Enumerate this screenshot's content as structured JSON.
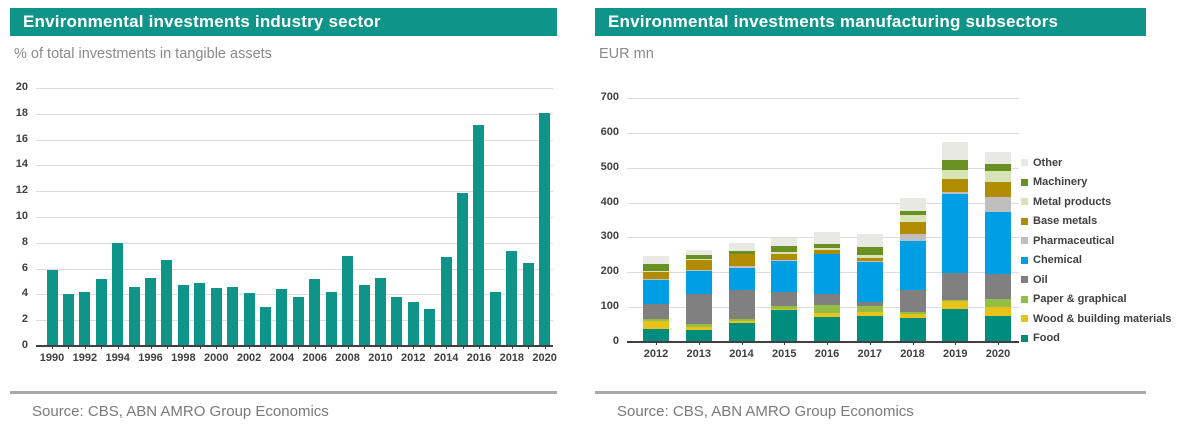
{
  "colors": {
    "header_bg": "#0E9488",
    "header_text": "#ffffff",
    "subtitle_text": "#8A8A8A",
    "axis_text": "#404040",
    "gridline": "#DCDCDC",
    "axis_line": "#404040",
    "divider": "#A8A8A8",
    "source_text": "#7A7A7A",
    "bar_teal": "#0E9488"
  },
  "left_panel": {
    "title": "Environmental investments industry sector",
    "subtitle": "% of total investments in tangible assets",
    "source": "Source: CBS, ABN AMRO Group Economics",
    "chart_data": {
      "type": "bar",
      "title": "Environmental investments industry sector",
      "ylabel": "% of total investments in tangible assets",
      "ylim": [
        0,
        20
      ],
      "ytick_step": 2,
      "grid": true,
      "bar_color": "#0E9488",
      "xtick_label_every": 2,
      "categories": [
        "1990",
        "1991",
        "1992",
        "1993",
        "1994",
        "1995",
        "1996",
        "1997",
        "1998",
        "1999",
        "2000",
        "2001",
        "2002",
        "2003",
        "2004",
        "2005",
        "2006",
        "2007",
        "2008",
        "2009",
        "2010",
        "2011",
        "2012",
        "2013",
        "2014",
        "2015",
        "2016",
        "2017",
        "2018",
        "2019",
        "2020"
      ],
      "values": [
        5.9,
        4.0,
        4.2,
        5.2,
        8.0,
        4.6,
        5.3,
        6.7,
        4.7,
        4.9,
        4.5,
        4.6,
        4.1,
        3.0,
        4.4,
        3.8,
        5.2,
        4.2,
        7.0,
        4.7,
        5.3,
        3.8,
        3.4,
        2.9,
        6.9,
        11.9,
        17.1,
        4.2,
        7.4,
        6.4,
        18.1
      ]
    }
  },
  "right_panel": {
    "title": "Environmental investments manufacturing subsectors",
    "subtitle": "EUR mn",
    "source": "Source: CBS, ABN AMRO Group Economics",
    "chart_data": {
      "type": "stacked-bar",
      "title": "Environmental investments manufacturing subsectors",
      "ylabel": "EUR mn",
      "ylim": [
        0,
        700
      ],
      "ytick_step": 100,
      "grid": true,
      "legend_position": "right",
      "categories": [
        "2012",
        "2013",
        "2014",
        "2015",
        "2016",
        "2017",
        "2018",
        "2019",
        "2020"
      ],
      "series": [
        {
          "name": "Food",
          "color": "#008D7E",
          "values": [
            36,
            35,
            55,
            93,
            72,
            74,
            70,
            95,
            76
          ]
        },
        {
          "name": "Wood & building materials",
          "color": "#E8C219",
          "values": [
            24,
            9,
            5,
            3,
            12,
            13,
            9,
            24,
            24
          ]
        },
        {
          "name": "Paper & graphical",
          "color": "#94BE44",
          "values": [
            7,
            8,
            5,
            7,
            21,
            17,
            7,
            2,
            24
          ]
        },
        {
          "name": "Oil",
          "color": "#808080",
          "values": [
            42,
            86,
            85,
            41,
            33,
            10,
            62,
            76,
            72
          ]
        },
        {
          "name": "Chemical",
          "color": "#009FE3",
          "values": [
            70,
            67,
            63,
            88,
            114,
            117,
            143,
            229,
            177
          ]
        },
        {
          "name": "Pharmaceutical",
          "color": "#BFBFBF",
          "values": [
            2,
            2,
            6,
            2,
            2,
            2,
            19,
            5,
            43
          ]
        },
        {
          "name": "Base metals",
          "color": "#B28C00",
          "values": [
            21,
            28,
            33,
            19,
            9,
            9,
            33,
            38,
            43
          ]
        },
        {
          "name": "Metal products",
          "color": "#D7E4B5",
          "values": [
            2,
            3,
            2,
            5,
            8,
            9,
            22,
            26,
            33
          ]
        },
        {
          "name": "Machinery",
          "color": "#6A8F23",
          "values": [
            20,
            12,
            8,
            17,
            9,
            22,
            11,
            27,
            19
          ]
        },
        {
          "name": "Other",
          "color": "#E9E9E4",
          "values": [
            24,
            15,
            21,
            23,
            36,
            38,
            38,
            52,
            33
          ]
        }
      ]
    }
  }
}
